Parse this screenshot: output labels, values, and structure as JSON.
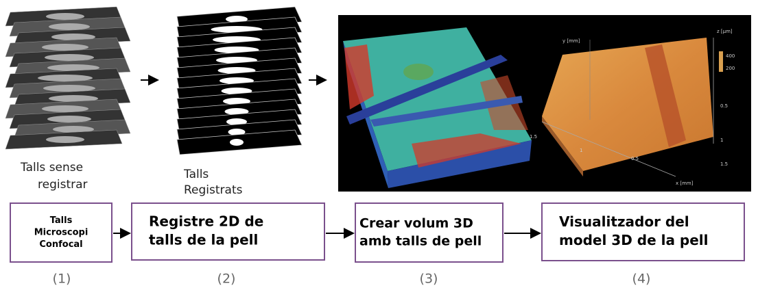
{
  "images": [
    {
      "caption": [
        "Talls sense",
        "registrar"
      ]
    },
    {
      "caption": [
        "Talls",
        "Registrats"
      ]
    }
  ],
  "plot_3d": {
    "y_axis": "y [mm]",
    "z_axis": "z [µm]",
    "x_axis": "x [mm]",
    "colorbar": [
      "400",
      "200"
    ],
    "y_ticks": [
      "1.5",
      "1",
      "0.5"
    ],
    "x_ticks": [
      "0.5",
      "1",
      "1.5"
    ]
  },
  "steps": [
    {
      "lines": [
        "Talls",
        "Microscopi",
        "Confocal"
      ],
      "number": "(1)"
    },
    {
      "lines": [
        "Registre 2D de",
        "talls de la pell"
      ],
      "number": "(2)"
    },
    {
      "lines": [
        "Crear volum 3D",
        "amb talls de pell"
      ],
      "number": "(3)"
    },
    {
      "lines": [
        "Visualitzador del",
        "model 3D de la pell"
      ],
      "number": "(4)"
    }
  ]
}
